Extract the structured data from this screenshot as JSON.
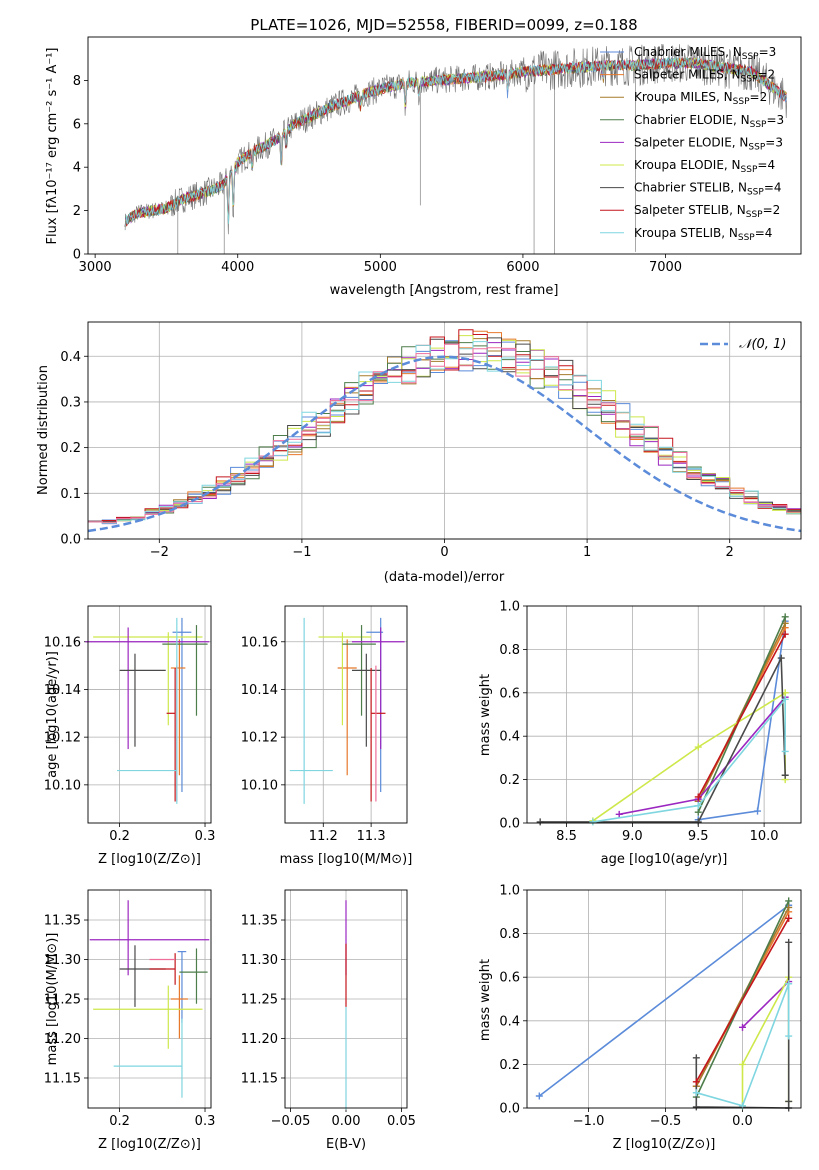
{
  "colors": {
    "chabrier_miles": "#5b8bd9",
    "salpeter_miles": "#e8792c",
    "kroupa_miles": "#a57b2d",
    "chabrier_elodie": "#4d7d4a",
    "salpeter_elodie": "#9b27c0",
    "kroupa_elodie": "#cde84a",
    "chabrier_stelib": "#4a4a4a",
    "salpeter_stelib": "#c4161c",
    "kroupa_stelib": "#7fd6e0",
    "pink": "#ee6f9b",
    "gaussian": "#5b8bd9",
    "grid": "#b0b0b0",
    "spectrum": "#6e6e6e"
  },
  "chart_data": [
    {
      "id": "spectrum",
      "type": "line",
      "title": "PLATE=1026, MJD=52558, FIBERID=0099, z=0.188",
      "xlabel": "wavelength [Angstrom, rest frame]",
      "ylabel": "Flux [f_λ10^-17 erg cm^-2 s^-1 A^-1]",
      "xlim": [
        2950,
        7950
      ],
      "ylim": [
        0,
        10
      ],
      "xticks": [
        "3000",
        "4000",
        "5000",
        "6000",
        "7000"
      ],
      "yticks": [
        "0",
        "2",
        "4",
        "6",
        "8"
      ],
      "grid": false,
      "legend_position": "upper-right",
      "legend": [
        "Chabrier MILES, N_SSP=3",
        "Salpeter MILES, N_SSP=2",
        "Kroupa MILES, N_SSP=2",
        "Chabrier ELODIE, N_SSP=3",
        "Salpeter ELODIE, N_SSP=3",
        "Kroupa ELODIE, N_SSP=4",
        "Chabrier STELIB, N_SSP=4",
        "Salpeter STELIB, N_SSP=2",
        "Kroupa STELIB, N_SSP=4"
      ],
      "continuum": {
        "x": [
          3210,
          3300,
          3400,
          3500,
          3600,
          3700,
          3800,
          3900,
          4000,
          4100,
          4200,
          4300,
          4400,
          4500,
          4700,
          4900,
          5000,
          5200,
          5400,
          5600,
          5800,
          6000,
          6200,
          6400,
          6600,
          6800,
          7000,
          7200,
          7400,
          7600,
          7850
        ],
        "y": [
          1.5,
          1.9,
          2.0,
          2.1,
          2.5,
          2.7,
          2.9,
          3.2,
          4.2,
          4.7,
          5.0,
          5.4,
          6.0,
          6.3,
          6.9,
          7.4,
          7.6,
          7.9,
          8.0,
          8.1,
          8.2,
          8.4,
          8.5,
          8.6,
          8.7,
          8.7,
          8.8,
          8.8,
          8.6,
          8.4,
          7.2
        ]
      },
      "absorption_lines": [
        {
          "x": 3934,
          "depth": 2.2
        },
        {
          "x": 3969,
          "depth": 2.0
        },
        {
          "x": 4102,
          "depth": 0.8
        },
        {
          "x": 4305,
          "depth": 1.5
        },
        {
          "x": 4341,
          "depth": 0.7
        },
        {
          "x": 4861,
          "depth": 0.6
        },
        {
          "x": 5175,
          "depth": 1.2
        },
        {
          "x": 5270,
          "depth": 0.6
        },
        {
          "x": 5893,
          "depth": 0.9
        },
        {
          "x": 6563,
          "depth": 0.6
        }
      ],
      "spikes": [
        {
          "x": 3580,
          "depth": 8.2
        },
        {
          "x": 3905,
          "depth": 6.0
        },
        {
          "x": 5280,
          "depth": 5.7
        },
        {
          "x": 6078,
          "depth": 8.5
        },
        {
          "x": 6220,
          "depth": 8.6
        },
        {
          "x": 6790,
          "depth": 8.6
        }
      ]
    },
    {
      "id": "residuals",
      "type": "step",
      "xlabel": "(data-model)/error",
      "ylabel": "Normed distribution",
      "xlim": [
        -2.5,
        2.5
      ],
      "ylim": [
        0,
        0.475
      ],
      "xticks": [
        "−2",
        "−1",
        "0",
        "1",
        "2"
      ],
      "yticks": [
        "0.0",
        "0.1",
        "0.2",
        "0.3",
        "0.4"
      ],
      "grid": true,
      "legend": [
        "𝒩(0, 1)"
      ],
      "legend_position": "upper-right",
      "bin_width": 0.1,
      "gaussian": {
        "mean": 0,
        "sigma": 1
      },
      "histogram_center": 0.2,
      "histogram_sigma": 1.05,
      "histogram_amp": 0.395
    },
    {
      "id": "age-vs-Z",
      "type": "errorbar",
      "xlabel": "Z [log10(Z/Z⊙)]",
      "ylabel": "age  [log10(age/yr)]",
      "xlim": [
        0.163,
        0.307
      ],
      "ylim": [
        10.084,
        10.175
      ],
      "xticks": [
        "0.2",
        "0.3"
      ],
      "yticks": [
        "10.10",
        "10.12",
        "10.14",
        "10.16"
      ],
      "grid": true,
      "points": [
        {
          "c": "chabrier_miles",
          "x": 0.273,
          "xe": [
            0.011,
            0.011
          ],
          "y": 10.164,
          "ye": [
            0.067,
            0.006
          ]
        },
        {
          "c": "salpeter_miles",
          "x": 0.27,
          "xe": [
            0.01,
            0.007
          ],
          "y": 10.149,
          "ye": [
            0.045,
            0.012
          ]
        },
        {
          "c": "kroupa_elodie",
          "x": 0.257,
          "xe": [
            0.088,
            0.04
          ],
          "y": 10.162,
          "ye": [
            0.037,
            0.002
          ]
        },
        {
          "c": "chabrier_elodie",
          "x": 0.29,
          "xe": [
            0.04,
            0.013
          ],
          "y": 10.159,
          "ye": [
            0.03,
            0.008
          ]
        },
        {
          "c": "salpeter_elodie",
          "x": 0.21,
          "xe": [
            0.05,
            0.095
          ],
          "y": 10.16,
          "ye": [
            0.045,
            0.006
          ]
        },
        {
          "c": "chabrier_stelib",
          "x": 0.218,
          "xe": [
            0.018,
            0.036
          ],
          "y": 10.148,
          "ye": [
            0.032,
            0.007
          ]
        },
        {
          "c": "salpeter_stelib",
          "x": 0.265,
          "xe": [
            0.01,
            0.0
          ],
          "y": 10.13,
          "ye": [
            0.037,
            0.019
          ]
        },
        {
          "c": "pink",
          "x": 0.267,
          "xe": [
            0.0,
            0.0
          ],
          "y": 10.13,
          "ye": [
            0.037,
            0.02
          ]
        },
        {
          "c": "kroupa_stelib",
          "x": 0.267,
          "xe": [
            0.07,
            0.0
          ],
          "y": 10.106,
          "ye": [
            0.014,
            0.064
          ]
        }
      ]
    },
    {
      "id": "age-vs-mass",
      "type": "errorbar",
      "xlabel": "mass [log10(M/M⊙)]",
      "ylabel": "",
      "xlim": [
        11.12,
        11.375
      ],
      "ylim": [
        10.084,
        10.175
      ],
      "xticks": [
        "11.2",
        "11.3"
      ],
      "yticks": [
        "10.10",
        "10.12",
        "10.14",
        "10.16"
      ],
      "grid": true,
      "points": [
        {
          "c": "chabrier_miles",
          "x": 11.32,
          "xe": [
            0.03,
            0.005
          ],
          "y": 10.164,
          "ye": [
            0.067,
            0.006
          ]
        },
        {
          "c": "salpeter_miles",
          "x": 11.25,
          "xe": [
            0.02,
            0.02
          ],
          "y": 10.149,
          "ye": [
            0.045,
            0.012
          ]
        },
        {
          "c": "kroupa_elodie",
          "x": 11.24,
          "xe": [
            0.05,
            0.06
          ],
          "y": 10.162,
          "ye": [
            0.037,
            0.002
          ]
        },
        {
          "c": "chabrier_elodie",
          "x": 11.28,
          "xe": [
            0.04,
            0.03
          ],
          "y": 10.159,
          "ye": [
            0.03,
            0.008
          ]
        },
        {
          "c": "salpeter_elodie",
          "x": 11.32,
          "xe": [
            0.06,
            0.05
          ],
          "y": 10.16,
          "ye": [
            0.045,
            0.006
          ]
        },
        {
          "c": "chabrier_stelib",
          "x": 11.29,
          "xe": [
            0.03,
            0.03
          ],
          "y": 10.148,
          "ye": [
            0.032,
            0.007
          ]
        },
        {
          "c": "salpeter_stelib",
          "x": 11.3,
          "xe": [
            0.0,
            0.03
          ],
          "y": 10.13,
          "ye": [
            0.037,
            0.019
          ]
        },
        {
          "c": "pink",
          "x": 11.31,
          "xe": [
            0.0,
            0.0
          ],
          "y": 10.13,
          "ye": [
            0.037,
            0.02
          ]
        },
        {
          "c": "kroupa_stelib",
          "x": 11.16,
          "xe": [
            0.03,
            0.06
          ],
          "y": 10.106,
          "ye": [
            0.014,
            0.064
          ]
        }
      ]
    },
    {
      "id": "weight-vs-age",
      "type": "line",
      "xlabel": "age  [log10(age/yr)]",
      "ylabel": "mass weight",
      "xlim": [
        8.2,
        10.28
      ],
      "ylim": [
        0,
        1
      ],
      "xticks": [
        "8.5",
        "9.0",
        "9.5",
        "10.0"
      ],
      "yticks": [
        "0.0",
        "0.2",
        "0.4",
        "0.6",
        "0.8",
        "1.0"
      ],
      "grid": true,
      "series": [
        {
          "c": "chabrier_miles",
          "x": [
            9.5,
            9.95,
            10.16
          ],
          "y": [
            0.015,
            0.055,
            0.93
          ]
        },
        {
          "c": "salpeter_miles",
          "x": [
            9.5,
            10.16
          ],
          "y": [
            0.1,
            0.9
          ]
        },
        {
          "c": "kroupa_miles",
          "x": [
            9.5,
            10.16
          ],
          "y": [
            0.1,
            0.92
          ]
        },
        {
          "c": "chabrier_elodie",
          "x": [
            9.5,
            10.16
          ],
          "y": [
            0.05,
            0.95
          ]
        },
        {
          "c": "salpeter_elodie",
          "x": [
            8.9,
            9.5,
            10.16
          ],
          "y": [
            0.04,
            0.11,
            0.58
          ]
        },
        {
          "c": "kroupa_elodie",
          "x": [
            8.7,
            9.5,
            10.16,
            10.16
          ],
          "y": [
            0.01,
            0.35,
            0.6,
            0.2
          ]
        },
        {
          "c": "chabrier_stelib",
          "x": [
            8.3,
            9.5,
            10.13,
            10.16
          ],
          "y": [
            0.005,
            0.005,
            0.76,
            0.22
          ]
        },
        {
          "c": "salpeter_stelib",
          "x": [
            9.5,
            10.16
          ],
          "y": [
            0.12,
            0.87
          ]
        },
        {
          "c": "kroupa_stelib",
          "x": [
            8.7,
            9.5,
            10.16,
            10.16
          ],
          "y": [
            0.005,
            0.08,
            0.57,
            0.33
          ]
        }
      ]
    },
    {
      "id": "mass-vs-Z",
      "type": "errorbar",
      "xlabel": "Z [log10(Z/Z⊙)]",
      "ylabel": "mass [log10(M/M⊙)]",
      "xlim": [
        0.163,
        0.307
      ],
      "ylim": [
        11.112,
        11.388
      ],
      "xticks": [
        "0.2",
        "0.3"
      ],
      "yticks": [
        "11.15",
        "11.20",
        "11.25",
        "11.30",
        "11.35"
      ],
      "grid": true,
      "points": [
        {
          "c": "chabrier_miles",
          "x": 0.273,
          "xe": [
            0.005,
            0.005
          ],
          "y": 11.31,
          "ye": [
            0.09,
            0.0
          ]
        },
        {
          "c": "salpeter_miles",
          "x": 0.27,
          "xe": [
            0.01,
            0.01
          ],
          "y": 11.25,
          "ye": [
            0.05,
            0.03
          ]
        },
        {
          "c": "kroupa_elodie",
          "x": 0.257,
          "xe": [
            0.088,
            0.04
          ],
          "y": 11.237,
          "ye": [
            0.05,
            0.03
          ]
        },
        {
          "c": "chabrier_elodie",
          "x": 0.29,
          "xe": [
            0.02,
            0.013
          ],
          "y": 11.284,
          "ye": [
            0.04,
            0.03
          ]
        },
        {
          "c": "salpeter_elodie",
          "x": 0.21,
          "xe": [
            0.045,
            0.095
          ],
          "y": 11.325,
          "ye": [
            0.045,
            0.05
          ]
        },
        {
          "c": "chabrier_stelib",
          "x": 0.218,
          "xe": [
            0.018,
            0.036
          ],
          "y": 11.288,
          "ye": [
            0.048,
            0.03
          ]
        },
        {
          "c": "salpeter_stelib",
          "x": 0.265,
          "xe": [
            0.03,
            0.0
          ],
          "y": 11.288,
          "ye": [
            0.02,
            0.02
          ]
        },
        {
          "c": "pink",
          "x": 0.265,
          "xe": [
            0.03,
            0.0
          ],
          "y": 11.3,
          "ye": [
            0.0,
            0.0
          ]
        },
        {
          "c": "kroupa_stelib",
          "x": 0.273,
          "xe": [
            0.08,
            0.0
          ],
          "y": 11.165,
          "ye": [
            0.04,
            0.06
          ]
        }
      ]
    },
    {
      "id": "mass-vs-ebv",
      "type": "errorbar",
      "xlabel": "E(B-V)",
      "ylabel": "",
      "xlim": [
        -0.055,
        0.055
      ],
      "ylim": [
        11.112,
        11.388
      ],
      "xticks": [
        "−0.05",
        "0.00",
        "0.05"
      ],
      "yticks": [
        "11.15",
        "11.20",
        "11.25",
        "11.30",
        "11.35"
      ],
      "grid": true,
      "points": [
        {
          "c": "salpeter_elodie",
          "x": 0.0,
          "xe": [
            0,
            0
          ],
          "y": 11.33,
          "ye": [
            0.05,
            0.045
          ]
        },
        {
          "c": "salpeter_stelib",
          "x": 0.0,
          "xe": [
            0,
            0
          ],
          "y": 11.29,
          "ye": [
            0.05,
            0.03
          ]
        },
        {
          "c": "kroupa_stelib",
          "x": 0.0,
          "xe": [
            0,
            0
          ],
          "y": 11.18,
          "ye": [
            0.07,
            0.06
          ]
        }
      ]
    },
    {
      "id": "weight-vs-Z",
      "type": "line",
      "xlabel": "Z [log10(Z/Z⊙)]",
      "ylabel": "mass weight",
      "xlim": [
        -1.4,
        0.38
      ],
      "ylim": [
        0,
        1
      ],
      "xticks": [
        "−1.0",
        "−0.5",
        "0.0"
      ],
      "yticks": [
        "0.0",
        "0.2",
        "0.4",
        "0.6",
        "0.8",
        "1.0"
      ],
      "grid": true,
      "series": [
        {
          "c": "chabrier_miles",
          "x": [
            -1.32,
            0.3
          ],
          "y": [
            0.055,
            0.93
          ]
        },
        {
          "c": "salpeter_miles",
          "x": [
            -0.3,
            0.3
          ],
          "y": [
            0.1,
            0.9
          ]
        },
        {
          "c": "kroupa_miles",
          "x": [
            -0.3,
            0.3
          ],
          "y": [
            0.1,
            0.92
          ]
        },
        {
          "c": "chabrier_elodie",
          "x": [
            -0.3,
            0.3
          ],
          "y": [
            0.05,
            0.95
          ]
        },
        {
          "c": "salpeter_elodie",
          "x": [
            0.0,
            0.3
          ],
          "y": [
            0.37,
            0.58
          ]
        },
        {
          "c": "kroupa_elodie",
          "x": [
            0.0,
            0.0,
            0.3,
            0.3
          ],
          "y": [
            0.01,
            0.2,
            0.6,
            0.03
          ]
        },
        {
          "c": "chabrier_stelib",
          "x": [
            -0.3,
            -0.3,
            0.3,
            0.3,
            0.3
          ],
          "y": [
            0.23,
            0.005,
            0.0,
            0.76,
            0.03
          ]
        },
        {
          "c": "salpeter_stelib",
          "x": [
            -0.3,
            0.3
          ],
          "y": [
            0.12,
            0.87
          ]
        },
        {
          "c": "kroupa_stelib",
          "x": [
            -0.3,
            0.0,
            0.3,
            0.3
          ],
          "y": [
            0.07,
            0.01,
            0.57,
            0.33
          ]
        }
      ]
    }
  ]
}
